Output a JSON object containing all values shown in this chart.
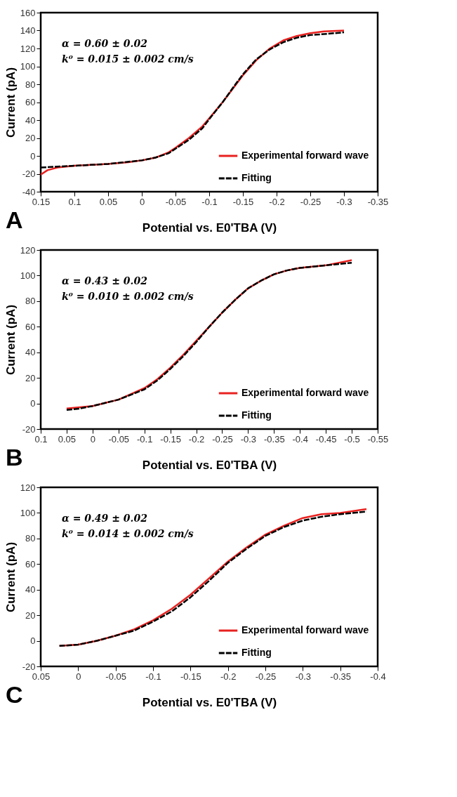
{
  "chart_data": [
    {
      "type": "line",
      "title": "A",
      "xlabel": "Potential vs. E0'TBA (V)",
      "ylabel": "Current (pA)",
      "xlim": [
        0.15,
        -0.35
      ],
      "xticks": [
        0.15,
        0.1,
        0.05,
        0,
        -0.05,
        -0.1,
        -0.15,
        -0.2,
        -0.25,
        -0.3,
        -0.35
      ],
      "ylim": [
        -40,
        160
      ],
      "yticks": [
        -40,
        -20,
        0,
        20,
        40,
        60,
        80,
        100,
        120,
        140,
        160
      ],
      "grid": false,
      "legend": "bottom right",
      "annotations": [
        "α = 0.60 ± 0.02",
        "k⁰ = 0.015 ± 0.002 cm/s"
      ],
      "series": [
        {
          "name": "Experimental forward wave",
          "color": "#e8211f",
          "line_style": "solid",
          "x": [
            0.15,
            0.14,
            0.125,
            0.1,
            0.05,
            0.02,
            0,
            -0.02,
            -0.04,
            -0.05,
            -0.07,
            -0.09,
            -0.1,
            -0.12,
            -0.14,
            -0.15,
            -0.17,
            -0.19,
            -0.21,
            -0.23,
            -0.25,
            -0.27,
            -0.3
          ],
          "values": [
            -21,
            -16,
            -13,
            -11,
            -9,
            -7,
            -5,
            -2,
            4,
            9,
            20,
            33,
            42,
            60,
            80,
            90,
            107,
            120,
            129,
            134,
            137,
            139,
            140
          ]
        },
        {
          "name": "Fitting",
          "color": "#000000",
          "line_style": "dashed",
          "x": [
            0.15,
            0.125,
            0.1,
            0.05,
            0,
            -0.02,
            -0.04,
            -0.05,
            -0.07,
            -0.09,
            -0.1,
            -0.12,
            -0.14,
            -0.15,
            -0.17,
            -0.19,
            -0.21,
            -0.23,
            -0.25,
            -0.27,
            -0.3
          ],
          "values": [
            -13,
            -12,
            -11,
            -9,
            -5,
            -2,
            3,
            8,
            18,
            31,
            41,
            60,
            81,
            91,
            108,
            119,
            127,
            132,
            135,
            136,
            138
          ]
        }
      ]
    },
    {
      "type": "line",
      "title": "B",
      "xlabel": "Potential vs. E0'TBA (V)",
      "ylabel": "Current (pA)",
      "xlim": [
        0.1,
        -0.55
      ],
      "xticks": [
        0.1,
        0.05,
        0,
        -0.05,
        -0.1,
        -0.15,
        -0.2,
        -0.25,
        -0.3,
        -0.35,
        -0.4,
        -0.45,
        -0.5,
        -0.55
      ],
      "ylim": [
        -20,
        120
      ],
      "yticks": [
        -20,
        0,
        20,
        40,
        60,
        80,
        100,
        120
      ],
      "grid": false,
      "legend": "bottom right",
      "annotations": [
        "α = 0.43 ± 0.02",
        "k⁰ = 0.010 ± 0.002 cm/s"
      ],
      "series": [
        {
          "name": "Experimental forward wave",
          "color": "#e8211f",
          "line_style": "solid",
          "x": [
            0.05,
            0.025,
            0,
            -0.05,
            -0.1,
            -0.125,
            -0.15,
            -0.175,
            -0.2,
            -0.225,
            -0.25,
            -0.275,
            -0.3,
            -0.325,
            -0.35,
            -0.375,
            -0.4,
            -0.45,
            -0.5
          ],
          "values": [
            -4,
            -3,
            -2,
            3,
            12,
            19,
            28,
            38,
            49,
            60,
            71,
            81,
            90,
            96,
            101,
            104,
            106,
            108,
            112
          ]
        },
        {
          "name": "Fitting",
          "color": "#000000",
          "line_style": "dashed",
          "x": [
            0.05,
            0.025,
            0,
            -0.05,
            -0.1,
            -0.125,
            -0.15,
            -0.175,
            -0.2,
            -0.225,
            -0.25,
            -0.275,
            -0.3,
            -0.325,
            -0.35,
            -0.375,
            -0.4,
            -0.45,
            -0.5
          ],
          "values": [
            -5,
            -4,
            -2,
            3,
            11,
            18,
            27,
            37,
            48,
            60,
            71,
            81,
            90,
            96,
            101,
            104,
            106,
            108,
            110
          ]
        }
      ]
    },
    {
      "type": "line",
      "title": "C",
      "xlabel": "Potential vs. E0'TBA (V)",
      "ylabel": "Current (pA)",
      "xlim": [
        0.05,
        -0.4
      ],
      "xticks": [
        0.05,
        0,
        -0.05,
        -0.1,
        -0.15,
        -0.2,
        -0.25,
        -0.3,
        -0.35,
        -0.4
      ],
      "ylim": [
        -20,
        120
      ],
      "yticks": [
        -20,
        0,
        20,
        40,
        60,
        80,
        100,
        120
      ],
      "grid": false,
      "legend": "bottom right",
      "annotations": [
        "α = 0.49 ± 0.02",
        "k⁰ = 0.014 ± 0.002 cm/s"
      ],
      "series": [
        {
          "name": "Experimental forward wave",
          "color": "#e8211f",
          "line_style": "solid",
          "x": [
            0.025,
            0,
            -0.025,
            -0.05,
            -0.075,
            -0.1,
            -0.125,
            -0.15,
            -0.175,
            -0.2,
            -0.225,
            -0.25,
            -0.275,
            -0.3,
            -0.325,
            -0.35,
            -0.385
          ],
          "values": [
            -4,
            -3,
            0,
            4,
            9,
            16,
            25,
            36,
            49,
            62,
            73,
            83,
            90,
            96,
            99,
            100,
            103
          ]
        },
        {
          "name": "Fitting",
          "color": "#000000",
          "line_style": "dashed",
          "x": [
            0.025,
            0,
            -0.025,
            -0.05,
            -0.075,
            -0.1,
            -0.125,
            -0.15,
            -0.175,
            -0.2,
            -0.225,
            -0.25,
            -0.275,
            -0.3,
            -0.325,
            -0.35,
            -0.385
          ],
          "values": [
            -4,
            -3,
            0,
            4,
            8,
            15,
            23,
            34,
            47,
            61,
            72,
            82,
            89,
            94,
            97,
            99,
            101
          ]
        }
      ]
    }
  ]
}
